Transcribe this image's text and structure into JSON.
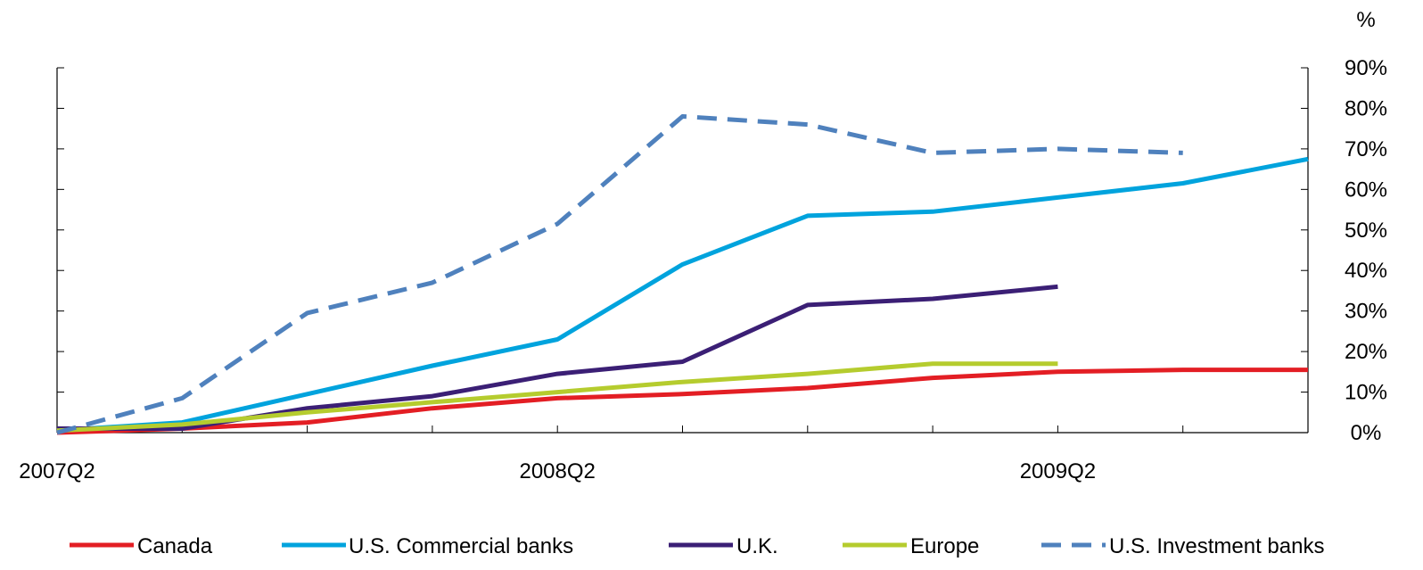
{
  "chart_data": {
    "type": "line",
    "title": "",
    "xlabel": "",
    "ylabel": "%",
    "x": [
      "2007Q2",
      "2007Q3",
      "2007Q4",
      "2008Q1",
      "2008Q2",
      "2008Q3",
      "2008Q4",
      "2009Q1",
      "2009Q2",
      "2009Q3",
      "2009Q4"
    ],
    "x_tick_labels": [
      "2007Q2",
      "2008Q2",
      "2009Q2"
    ],
    "y_ticks": [
      "0%",
      "10%",
      "20%",
      "30%",
      "40%",
      "50%",
      "60%",
      "70%",
      "80%",
      "90%"
    ],
    "ylim": [
      0,
      90
    ],
    "legend_position": "bottom",
    "grid": false,
    "series": [
      {
        "name": "Canada",
        "color": "#e31e24",
        "dash": false,
        "values": [
          0,
          1,
          2.5,
          6,
          8.5,
          9.5,
          11,
          13.5,
          15,
          15.5,
          15.5
        ]
      },
      {
        "name": "U.S. Commercial banks",
        "color": "#00a3dd",
        "dash": false,
        "values": [
          0.5,
          2.5,
          9.5,
          16.5,
          23,
          41.5,
          53.5,
          54.5,
          58,
          61.5,
          67.5
        ]
      },
      {
        "name": "U.K.",
        "color": "#3b1f75",
        "dash": false,
        "values": [
          1,
          1,
          6,
          9,
          14.5,
          17.5,
          31.5,
          33,
          36,
          null,
          null
        ]
      },
      {
        "name": "Europe",
        "color": "#b5cc2e",
        "dash": false,
        "values": [
          0.5,
          2,
          5,
          7.5,
          10,
          12.5,
          14.5,
          17,
          17,
          null,
          null
        ]
      },
      {
        "name": "U.S. Investment banks",
        "color": "#4f81bd",
        "dash": true,
        "values": [
          0,
          8.5,
          29.5,
          37,
          51.5,
          78,
          76,
          69,
          70,
          69,
          null
        ]
      }
    ]
  }
}
